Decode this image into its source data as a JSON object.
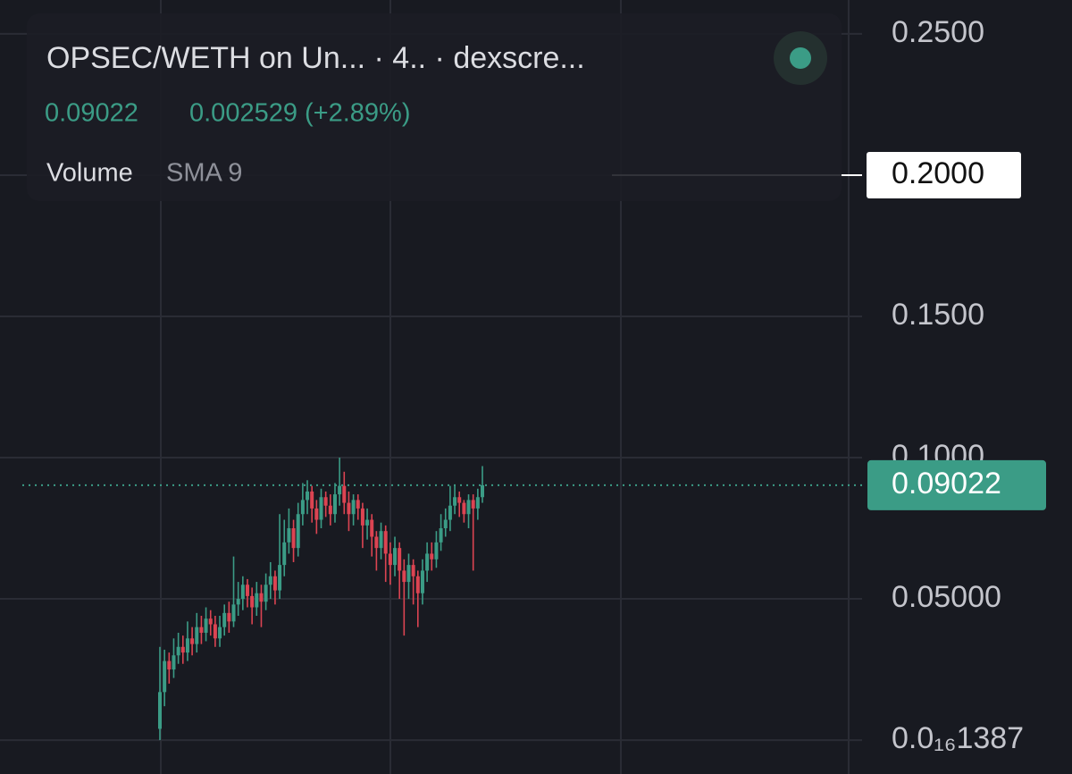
{
  "chart_data": {
    "type": "candlestick",
    "title": "OPSEC/WETH on Un... · 4.. · dexscre...",
    "last_price": 0.09022,
    "change": "0.002529 (+2.89%)",
    "indicator": "Volume",
    "indicator_setting": "SMA 9",
    "crosshair": {
      "value": 0.2,
      "label": "0.2000"
    },
    "up_color": "#3b9c86",
    "down_color": "#dc4452",
    "ylim": [
      -0.012,
      0.262
    ],
    "yticks": [
      {
        "value": 1.387e-17,
        "label": "0.0₁₆1387"
      },
      {
        "value": 0.05,
        "label": "0.05000"
      },
      {
        "value": 0.1,
        "label": "0.1000"
      },
      {
        "value": 0.15,
        "label": "0.1500"
      },
      {
        "value": 0.2,
        "label": "0.2000"
      },
      {
        "value": 0.25,
        "label": "0.2500"
      }
    ],
    "grid": true,
    "open": [
      0.004,
      0.017,
      0.028,
      0.025,
      0.03,
      0.033,
      0.031,
      0.036,
      0.034,
      0.04,
      0.038,
      0.043,
      0.041,
      0.036,
      0.04,
      0.045,
      0.042,
      0.048,
      0.05,
      0.055,
      0.051,
      0.047,
      0.052,
      0.049,
      0.055,
      0.058,
      0.053,
      0.062,
      0.07,
      0.075,
      0.068,
      0.08,
      0.085,
      0.088,
      0.082,
      0.078,
      0.086,
      0.083,
      0.08,
      0.087,
      0.09,
      0.084,
      0.08,
      0.085,
      0.082,
      0.076,
      0.078,
      0.072,
      0.068,
      0.074,
      0.066,
      0.062,
      0.068,
      0.06,
      0.056,
      0.062,
      0.058,
      0.052,
      0.06,
      0.066,
      0.064,
      0.07,
      0.075,
      0.078,
      0.083,
      0.086,
      0.084,
      0.08,
      0.085,
      0.082,
      0.086
    ],
    "high": [
      0.033,
      0.032,
      0.031,
      0.036,
      0.038,
      0.037,
      0.042,
      0.04,
      0.045,
      0.044,
      0.047,
      0.046,
      0.044,
      0.044,
      0.048,
      0.049,
      0.065,
      0.056,
      0.058,
      0.057,
      0.054,
      0.056,
      0.055,
      0.059,
      0.063,
      0.06,
      0.08,
      0.078,
      0.082,
      0.078,
      0.084,
      0.091,
      0.092,
      0.09,
      0.085,
      0.089,
      0.088,
      0.087,
      0.091,
      0.1,
      0.095,
      0.088,
      0.087,
      0.087,
      0.084,
      0.082,
      0.08,
      0.074,
      0.077,
      0.076,
      0.07,
      0.072,
      0.07,
      0.064,
      0.066,
      0.064,
      0.06,
      0.064,
      0.07,
      0.07,
      0.074,
      0.08,
      0.082,
      0.09,
      0.09,
      0.088,
      0.085,
      0.087,
      0.087,
      0.089,
      0.097
    ],
    "low": [
      0.0,
      0.012,
      0.02,
      0.022,
      0.027,
      0.027,
      0.028,
      0.03,
      0.031,
      0.034,
      0.035,
      0.037,
      0.033,
      0.033,
      0.037,
      0.038,
      0.04,
      0.044,
      0.046,
      0.047,
      0.041,
      0.044,
      0.04,
      0.046,
      0.05,
      0.048,
      0.05,
      0.058,
      0.066,
      0.063,
      0.065,
      0.076,
      0.08,
      0.077,
      0.073,
      0.075,
      0.079,
      0.076,
      0.077,
      0.083,
      0.08,
      0.074,
      0.076,
      0.078,
      0.068,
      0.071,
      0.065,
      0.06,
      0.064,
      0.056,
      0.055,
      0.058,
      0.05,
      0.037,
      0.05,
      0.048,
      0.04,
      0.048,
      0.056,
      0.06,
      0.061,
      0.067,
      0.072,
      0.074,
      0.08,
      0.079,
      0.077,
      0.075,
      0.06,
      0.078,
      0.084
    ],
    "close": [
      0.017,
      0.028,
      0.025,
      0.03,
      0.033,
      0.031,
      0.036,
      0.034,
      0.04,
      0.038,
      0.043,
      0.041,
      0.036,
      0.04,
      0.045,
      0.042,
      0.048,
      0.05,
      0.055,
      0.051,
      0.047,
      0.052,
      0.049,
      0.055,
      0.058,
      0.053,
      0.062,
      0.07,
      0.075,
      0.068,
      0.08,
      0.085,
      0.088,
      0.082,
      0.078,
      0.086,
      0.083,
      0.08,
      0.087,
      0.09,
      0.084,
      0.08,
      0.085,
      0.082,
      0.076,
      0.078,
      0.072,
      0.068,
      0.074,
      0.066,
      0.062,
      0.068,
      0.06,
      0.056,
      0.062,
      0.058,
      0.052,
      0.06,
      0.066,
      0.064,
      0.07,
      0.075,
      0.078,
      0.083,
      0.086,
      0.084,
      0.08,
      0.085,
      0.082,
      0.086,
      0.09022
    ]
  }
}
